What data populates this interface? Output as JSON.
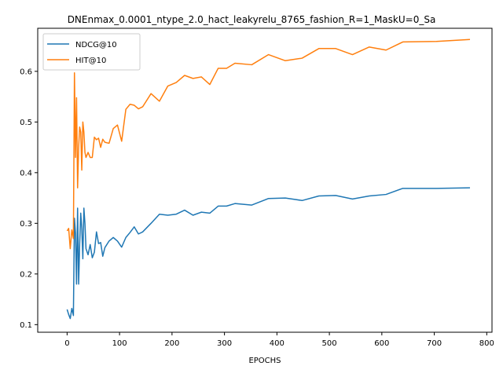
{
  "chart_data": {
    "type": "line",
    "title": "DNEnmax_0.0001_ntype_2.0_hact_leakyrelu_8765_fashion_R=1_MaskU=0_Sa",
    "xlabel": "EPOCHS",
    "ylabel": "",
    "xlim": [
      -56,
      810
    ],
    "ylim": [
      0.085,
      0.685
    ],
    "xticks": [
      0,
      100,
      200,
      300,
      400,
      500,
      600,
      700,
      800
    ],
    "yticks": [
      0.1,
      0.2,
      0.3,
      0.4,
      0.5,
      0.6
    ],
    "grid": false,
    "legend_position": "top-left",
    "series": [
      {
        "name": "NDCG@10",
        "color": "#1f77b4",
        "x": [
          0,
          3,
          6,
          9,
          12,
          14,
          16,
          18,
          20,
          22,
          24,
          26,
          28,
          30,
          32,
          34,
          36,
          40,
          44,
          48,
          52,
          56,
          60,
          64,
          68,
          72,
          80,
          88,
          96,
          104,
          112,
          120,
          128,
          136,
          144,
          160,
          176,
          192,
          208,
          224,
          240,
          256,
          272,
          288,
          304,
          320,
          352,
          384,
          416,
          448,
          480,
          512,
          544,
          576,
          608,
          640,
          704,
          768
        ],
        "y": [
          0.13,
          0.12,
          0.112,
          0.132,
          0.118,
          0.31,
          0.28,
          0.18,
          0.33,
          0.18,
          0.26,
          0.32,
          0.29,
          0.23,
          0.33,
          0.3,
          0.25,
          0.238,
          0.258,
          0.232,
          0.243,
          0.283,
          0.26,
          0.262,
          0.235,
          0.252,
          0.265,
          0.272,
          0.265,
          0.253,
          0.272,
          0.282,
          0.293,
          0.279,
          0.283,
          0.3,
          0.318,
          0.316,
          0.318,
          0.326,
          0.316,
          0.322,
          0.32,
          0.334,
          0.334,
          0.339,
          0.336,
          0.349,
          0.35,
          0.345,
          0.354,
          0.355,
          0.348,
          0.354,
          0.357,
          0.369,
          0.369,
          0.37
        ]
      },
      {
        "name": "HIT@10",
        "color": "#ff7f0e",
        "x": [
          0,
          3,
          6,
          9,
          12,
          14,
          16,
          18,
          20,
          22,
          24,
          26,
          28,
          30,
          32,
          34,
          36,
          40,
          44,
          48,
          52,
          56,
          60,
          64,
          68,
          72,
          80,
          88,
          96,
          104,
          112,
          120,
          128,
          136,
          144,
          160,
          176,
          192,
          208,
          224,
          240,
          256,
          272,
          288,
          304,
          320,
          352,
          384,
          416,
          448,
          480,
          512,
          544,
          576,
          608,
          640,
          704,
          768
        ],
        "y": [
          0.285,
          0.29,
          0.25,
          0.287,
          0.27,
          0.597,
          0.43,
          0.548,
          0.37,
          0.45,
          0.49,
          0.48,
          0.405,
          0.5,
          0.48,
          0.44,
          0.43,
          0.44,
          0.43,
          0.43,
          0.47,
          0.465,
          0.468,
          0.45,
          0.466,
          0.46,
          0.458,
          0.487,
          0.494,
          0.462,
          0.525,
          0.535,
          0.533,
          0.526,
          0.53,
          0.556,
          0.541,
          0.571,
          0.578,
          0.592,
          0.586,
          0.589,
          0.574,
          0.606,
          0.606,
          0.616,
          0.613,
          0.633,
          0.621,
          0.626,
          0.645,
          0.645,
          0.633,
          0.648,
          0.642,
          0.658,
          0.659,
          0.663
        ]
      }
    ]
  }
}
